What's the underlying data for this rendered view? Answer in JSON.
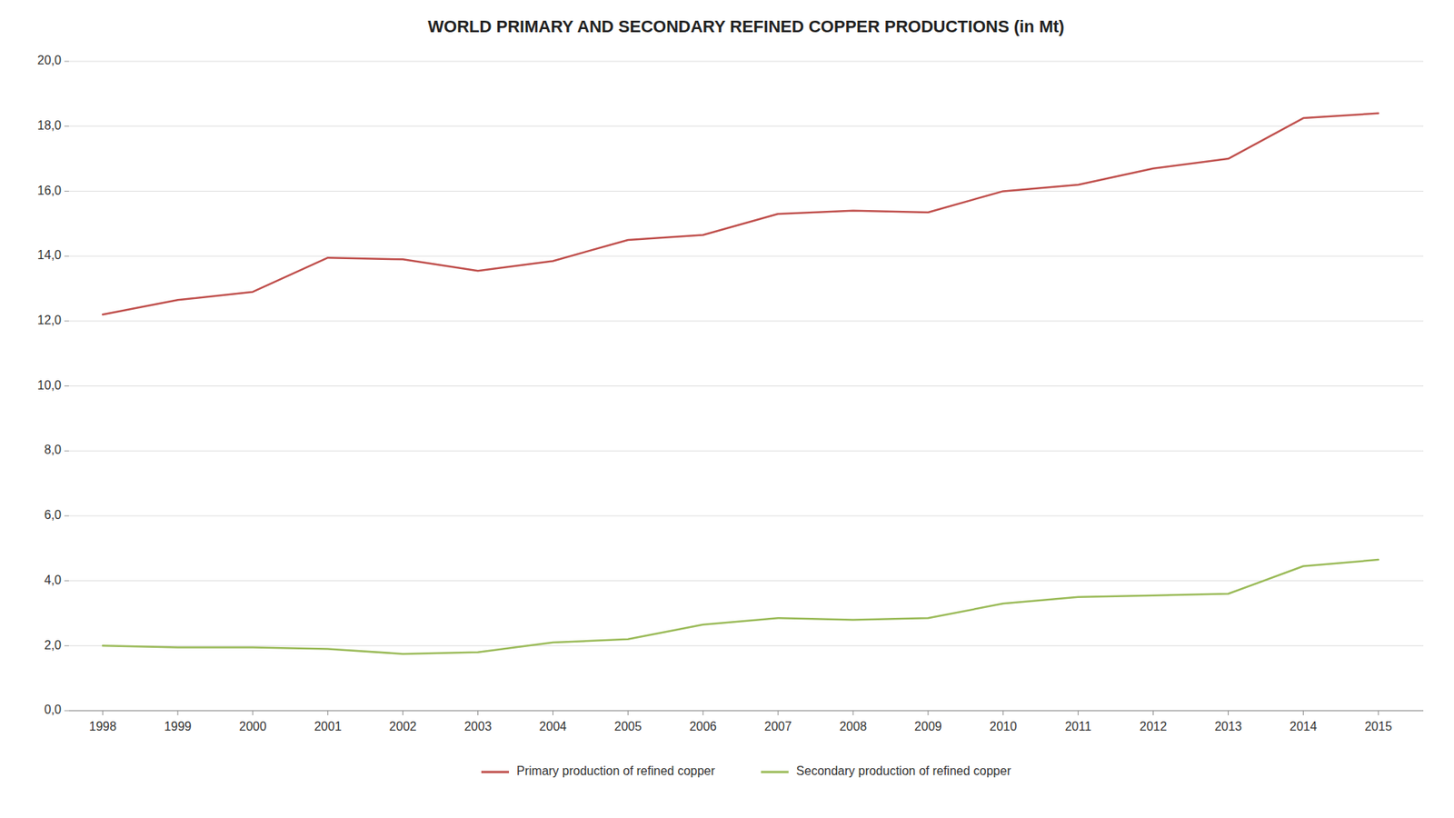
{
  "chart_data": {
    "type": "line",
    "title": "WORLD PRIMARY AND SECONDARY REFINED COPPER PRODUCTIONS (in Mt)",
    "x": [
      1998,
      1999,
      2000,
      2001,
      2002,
      2003,
      2004,
      2005,
      2006,
      2007,
      2008,
      2009,
      2010,
      2011,
      2012,
      2013,
      2014,
      2015
    ],
    "series": [
      {
        "name": "Primary production of refined copper",
        "color": "#C0504D",
        "values": [
          12.2,
          12.65,
          12.9,
          13.95,
          13.9,
          13.55,
          13.85,
          14.5,
          14.65,
          15.3,
          15.4,
          15.35,
          16.0,
          16.2,
          16.7,
          17.0,
          18.25,
          18.4
        ]
      },
      {
        "name": "Secondary production of refined copper",
        "color": "#9BBB59",
        "values": [
          2.0,
          1.95,
          1.95,
          1.9,
          1.75,
          1.8,
          2.1,
          2.2,
          2.65,
          2.85,
          2.8,
          2.85,
          3.3,
          3.5,
          3.55,
          3.6,
          4.45,
          4.65
        ]
      }
    ],
    "xlim": [
      1997.55,
      2015.6
    ],
    "xticks": [
      1998,
      1999,
      2000,
      2001,
      2002,
      2003,
      2004,
      2005,
      2006,
      2007,
      2008,
      2009,
      2010,
      2011,
      2012,
      2013,
      2014,
      2015
    ],
    "ylim": [
      0,
      20
    ],
    "yticks": [
      {
        "value": 0.0,
        "label": "0,0"
      },
      {
        "value": 2.0,
        "label": "2,0"
      },
      {
        "value": 4.0,
        "label": "4,0"
      },
      {
        "value": 6.0,
        "label": "6,0"
      },
      {
        "value": 8.0,
        "label": "8,0"
      },
      {
        "value": 10.0,
        "label": "10,0"
      },
      {
        "value": 12.0,
        "label": "12,0"
      },
      {
        "value": 14.0,
        "label": "14,0"
      },
      {
        "value": 16.0,
        "label": "16,0"
      },
      {
        "value": 18.0,
        "label": "18,0"
      },
      {
        "value": 20.0,
        "label": "20,0"
      }
    ],
    "grid": true,
    "legend": "bottom"
  }
}
